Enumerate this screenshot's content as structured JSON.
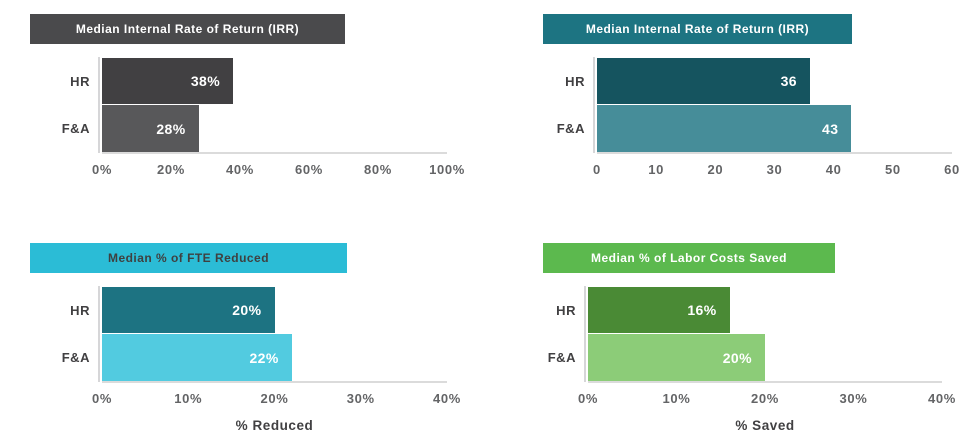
{
  "chart_data": [
    {
      "type": "bar",
      "orientation": "horizontal",
      "title": "Median Internal Rate of Return (IRR)",
      "categories": [
        "HR",
        "F&A"
      ],
      "values": [
        38,
        28
      ],
      "value_labels": [
        "38%",
        "28%"
      ],
      "xlim": [
        0,
        100
      ],
      "xticks": [
        "0%",
        "20%",
        "40%",
        "60%",
        "80%",
        "100%"
      ],
      "xlabel": "",
      "grid": "off",
      "legend": "none",
      "colors": {
        "header_bg": "#4a4a4c",
        "header_text": "#ffffff",
        "bars": [
          "#414042",
          "#58585a"
        ]
      }
    },
    {
      "type": "bar",
      "orientation": "horizontal",
      "title": "Median Internal Rate of Return (IRR)",
      "categories": [
        "HR",
        "F&A"
      ],
      "values": [
        36,
        43
      ],
      "value_labels": [
        "36",
        "43"
      ],
      "xlim": [
        0,
        60
      ],
      "xticks": [
        "0",
        "10",
        "20",
        "30",
        "40",
        "50",
        "60"
      ],
      "xlabel": "",
      "grid": "off",
      "legend": "none",
      "colors": {
        "header_bg": "#1d7482",
        "header_text": "#ffffff",
        "bars": [
          "#15545f",
          "#468d99"
        ]
      }
    },
    {
      "type": "bar",
      "orientation": "horizontal",
      "title": "Median % of FTE Reduced",
      "categories": [
        "HR",
        "F&A"
      ],
      "values": [
        20,
        22
      ],
      "value_labels": [
        "20%",
        "22%"
      ],
      "xlim": [
        0,
        40
      ],
      "xticks": [
        "0%",
        "10%",
        "20%",
        "30%",
        "40%"
      ],
      "xlabel": "% Reduced",
      "grid": "off",
      "legend": "none",
      "colors": {
        "header_bg": "#2bbcd6",
        "header_text": "#3f4040",
        "bars": [
          "#1d7382",
          "#52cbe0"
        ]
      }
    },
    {
      "type": "bar",
      "orientation": "horizontal",
      "title": "Median % of Labor Costs Saved",
      "categories": [
        "HR",
        "F&A"
      ],
      "values": [
        16,
        20
      ],
      "value_labels": [
        "16%",
        "20%"
      ],
      "xlim": [
        0,
        40
      ],
      "xticks": [
        "0%",
        "10%",
        "20%",
        "30%",
        "40%"
      ],
      "xlabel": "% Saved",
      "grid": "off",
      "legend": "none",
      "colors": {
        "header_bg": "#5cb94e",
        "header_text": "#ffffff",
        "bars": [
          "#4a8a35",
          "#8ccc78"
        ]
      }
    }
  ]
}
